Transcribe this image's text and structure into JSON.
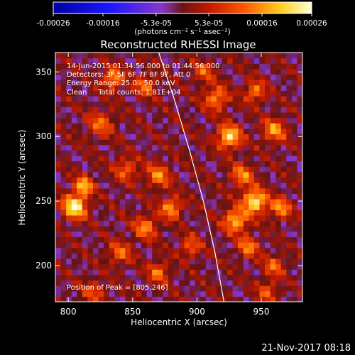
{
  "chart_data": {
    "type": "heatmap",
    "title": "Reconstructed RHESSI Image",
    "xlabel": "Heliocentric X (arcsec)",
    "ylabel": "Heliocentric Y (arcsec)",
    "xlim": [
      790,
      982
    ],
    "ylim": [
      172,
      365
    ],
    "x_ticks": [
      800,
      850,
      900,
      950
    ],
    "y_ticks": [
      200,
      250,
      300,
      350
    ],
    "colorbar": {
      "min": -0.00026,
      "max": 0.00026,
      "tick_labels": [
        "-0.00026",
        "-0.00016",
        "-5.3e-05",
        "5.3e-05",
        "0.00016",
        "0.00026"
      ],
      "units_label": "(photons cm⁻² s⁻¹ asec⁻²)"
    },
    "annotations": [
      "14-Jun-2015 01:34:56.000 to 01:44:56.000",
      "Detectors: 3F 5F 6F 7F 8F 9F, Att 0",
      "Energy Range: 25.0 - 50.0 keV",
      "Clean     Total counts: 1.81E+04"
    ],
    "peak_label": "Position of Peak = [805,246]",
    "peak": [
      805,
      246
    ],
    "limb_curve": [
      [
        870,
        366
      ],
      [
        882,
        330
      ],
      [
        894,
        290
      ],
      [
        905,
        250
      ],
      [
        914,
        210
      ],
      [
        921,
        172
      ]
    ],
    "blobs": [
      {
        "x": 805,
        "y": 246,
        "amp": 1.0,
        "r": 9
      },
      {
        "x": 812,
        "y": 262,
        "amp": 0.75,
        "r": 7
      },
      {
        "x": 825,
        "y": 310,
        "amp": 0.45,
        "r": 10
      },
      {
        "x": 835,
        "y": 345,
        "amp": 0.65,
        "r": 8
      },
      {
        "x": 860,
        "y": 340,
        "amp": 0.5,
        "r": 8
      },
      {
        "x": 845,
        "y": 275,
        "amp": 0.45,
        "r": 9
      },
      {
        "x": 870,
        "y": 270,
        "amp": 0.55,
        "r": 9
      },
      {
        "x": 880,
        "y": 245,
        "amp": 0.65,
        "r": 8
      },
      {
        "x": 860,
        "y": 230,
        "amp": 0.55,
        "r": 9
      },
      {
        "x": 840,
        "y": 210,
        "amp": 0.45,
        "r": 9
      },
      {
        "x": 870,
        "y": 195,
        "amp": 0.5,
        "r": 8
      },
      {
        "x": 895,
        "y": 215,
        "amp": 0.45,
        "r": 8
      },
      {
        "x": 925,
        "y": 300,
        "amp": 0.85,
        "r": 9
      },
      {
        "x": 915,
        "y": 330,
        "amp": 0.6,
        "r": 9
      },
      {
        "x": 945,
        "y": 335,
        "amp": 0.55,
        "r": 8
      },
      {
        "x": 960,
        "y": 305,
        "amp": 0.6,
        "r": 9
      },
      {
        "x": 935,
        "y": 270,
        "amp": 0.55,
        "r": 9
      },
      {
        "x": 945,
        "y": 250,
        "amp": 0.95,
        "r": 9
      },
      {
        "x": 930,
        "y": 235,
        "amp": 0.75,
        "r": 9
      },
      {
        "x": 965,
        "y": 245,
        "amp": 0.6,
        "r": 8
      },
      {
        "x": 940,
        "y": 215,
        "amp": 0.55,
        "r": 8
      },
      {
        "x": 960,
        "y": 200,
        "amp": 0.45,
        "r": 8
      },
      {
        "x": 955,
        "y": 180,
        "amp": 0.4,
        "r": 8
      },
      {
        "x": 820,
        "y": 180,
        "amp": 0.35,
        "r": 9
      },
      {
        "x": 905,
        "y": 350,
        "amp": 0.4,
        "r": 8
      }
    ]
  },
  "footer": {
    "timestamp": "21-Nov-2017 08:18"
  }
}
